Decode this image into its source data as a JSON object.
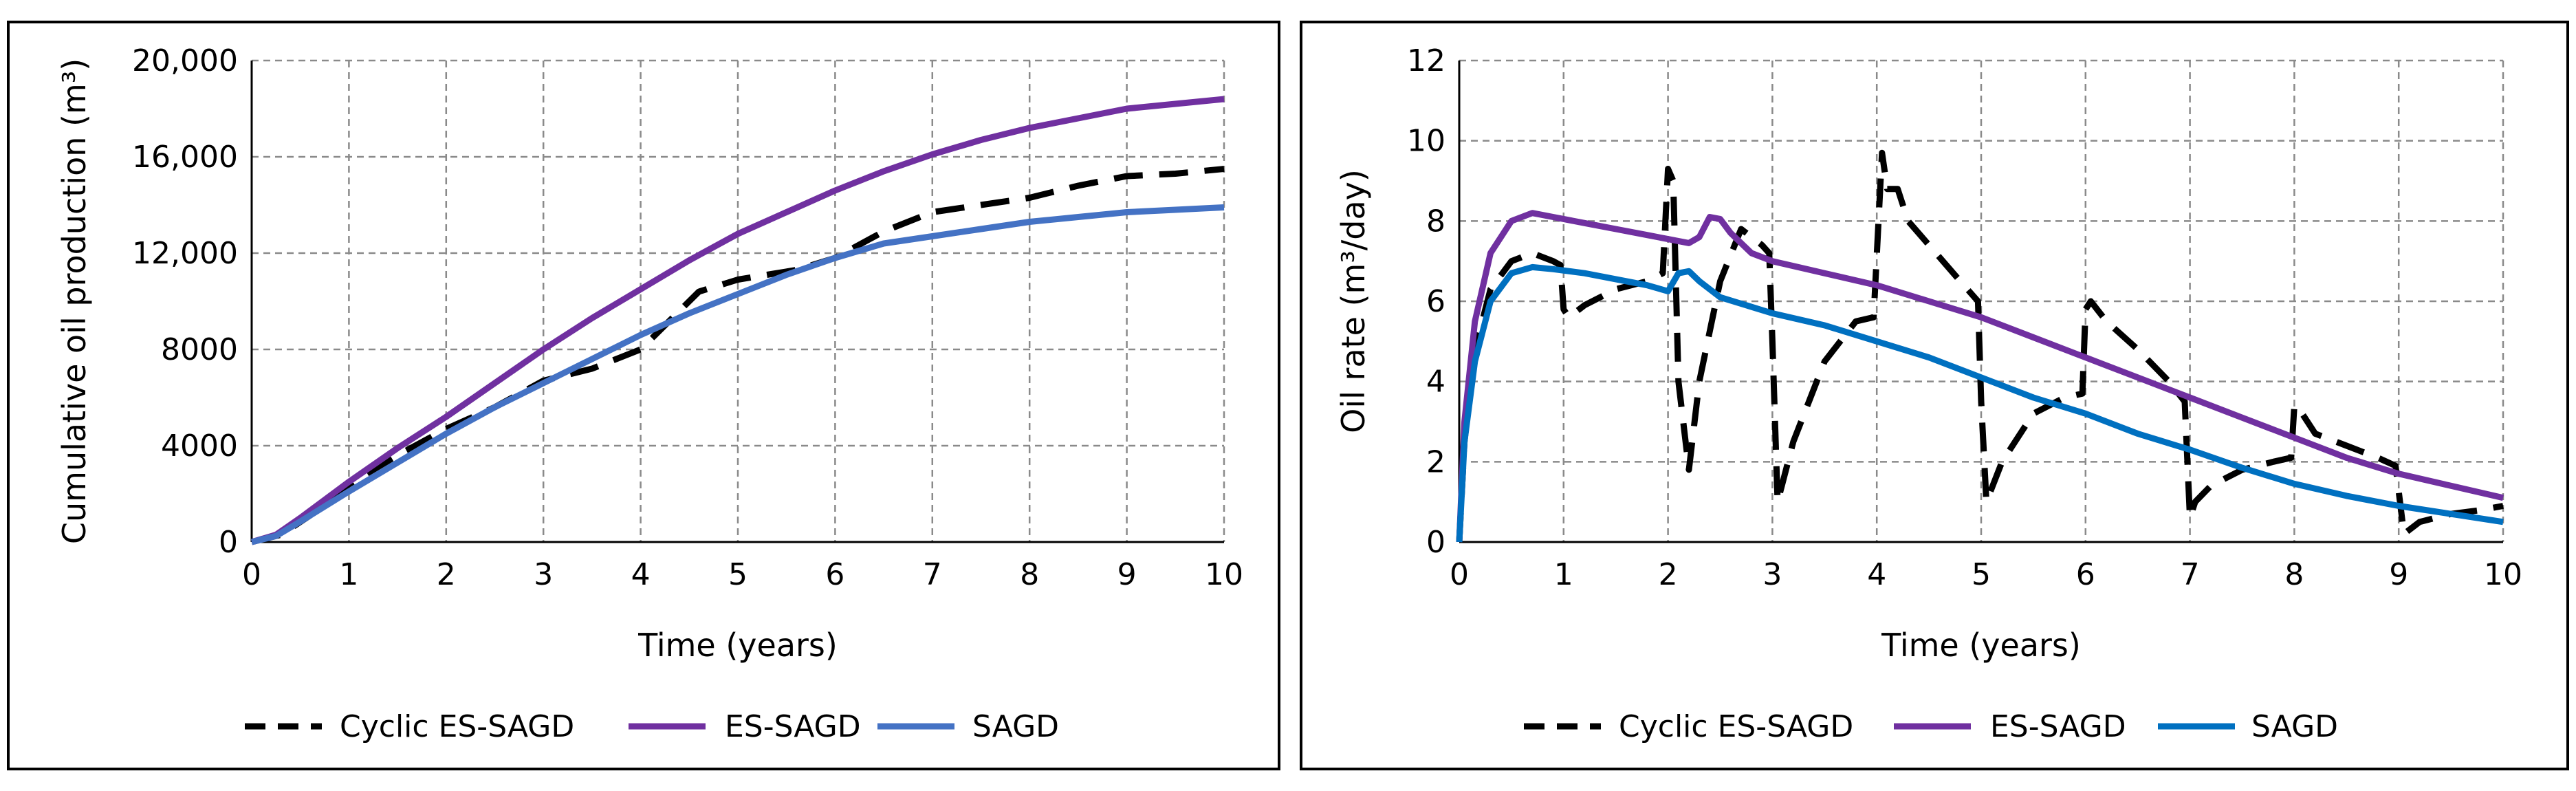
{
  "chart_data": [
    {
      "type": "line",
      "title": "",
      "xlabel": "Time (years)",
      "ylabel": "Cumulative oil production (m³)",
      "xlim": [
        0,
        10
      ],
      "ylim": [
        0,
        20000
      ],
      "x_ticks": [
        "0",
        "1",
        "2",
        "3",
        "4",
        "5",
        "6",
        "7",
        "8",
        "9",
        "10"
      ],
      "y_ticks": [
        "0",
        "4000",
        "8000",
        "12,000",
        "16,000",
        "20,000"
      ],
      "grid": true,
      "legend": "bottom",
      "series": [
        {
          "name": "Cyclic ES-SAGD",
          "color": "#000000",
          "style": "dashed",
          "x": [
            0,
            0.3,
            0.6,
            1,
            1.5,
            2,
            2.5,
            3,
            3.5,
            4,
            4.3,
            4.6,
            5,
            5.3,
            5.6,
            6,
            6.5,
            7,
            7.5,
            8,
            8.5,
            9,
            9.5,
            10
          ],
          "y": [
            0,
            300,
            1100,
            2400,
            3600,
            4700,
            5600,
            6700,
            7200,
            8000,
            9200,
            10400,
            10900,
            11100,
            11300,
            11800,
            12900,
            13700,
            14000,
            14300,
            14800,
            15200,
            15300,
            15500
          ]
        },
        {
          "name": "ES-SAGD",
          "color": "#7030A0",
          "style": "solid",
          "x": [
            0,
            0.25,
            0.5,
            1,
            1.5,
            2,
            2.5,
            3,
            3.5,
            4,
            4.5,
            5,
            5.5,
            6,
            6.5,
            7,
            7.5,
            8,
            8.5,
            9,
            9.5,
            10
          ],
          "y": [
            0,
            300,
            1000,
            2500,
            3900,
            5200,
            6600,
            8000,
            9300,
            10500,
            11700,
            12800,
            13700,
            14600,
            15400,
            16100,
            16700,
            17200,
            17600,
            18000,
            18200,
            18400
          ]
        },
        {
          "name": "SAGD",
          "color": "#4472C4",
          "style": "solid",
          "x": [
            0,
            0.25,
            0.5,
            1,
            1.5,
            2,
            2.5,
            3,
            3.5,
            4,
            4.5,
            5,
            5.5,
            6,
            6.5,
            7,
            7.5,
            8,
            8.5,
            9,
            9.5,
            10
          ],
          "y": [
            0,
            250,
            850,
            2100,
            3300,
            4500,
            5600,
            6600,
            7600,
            8600,
            9500,
            10300,
            11100,
            11800,
            12400,
            12700,
            13000,
            13300,
            13500,
            13700,
            13800,
            13900
          ]
        }
      ]
    },
    {
      "type": "line",
      "title": "",
      "xlabel": "Time (years)",
      "ylabel": "Oil rate (m³/day)",
      "xlim": [
        0,
        10
      ],
      "ylim": [
        0,
        12
      ],
      "x_ticks": [
        "0",
        "1",
        "2",
        "3",
        "4",
        "5",
        "6",
        "7",
        "8",
        "9",
        "10"
      ],
      "y_ticks": [
        "0",
        "2",
        "4",
        "6",
        "8",
        "10",
        "12"
      ],
      "grid": true,
      "legend": "bottom",
      "series": [
        {
          "name": "Cyclic ES-SAGD",
          "color": "#000000",
          "style": "dashed",
          "x": [
            0,
            0.05,
            0.15,
            0.3,
            0.5,
            0.7,
            0.9,
            0.97,
            1.0,
            1.05,
            1.2,
            1.5,
            1.8,
            1.95,
            2.0,
            2.05,
            2.1,
            2.2,
            2.3,
            2.5,
            2.7,
            2.9,
            2.97,
            3.0,
            3.05,
            3.2,
            3.5,
            3.8,
            3.97,
            4.05,
            4.1,
            4.2,
            4.3,
            4.5,
            4.8,
            4.97,
            5.0,
            5.05,
            5.2,
            5.5,
            5.8,
            5.97,
            6.0,
            6.05,
            6.2,
            6.5,
            6.8,
            6.95,
            7.0,
            7.05,
            7.2,
            7.5,
            7.8,
            7.97,
            8.0,
            8.05,
            8.2,
            8.5,
            8.8,
            8.97,
            9.05,
            9.2,
            9.5,
            9.8,
            10
          ],
          "y": [
            0,
            2.5,
            4.8,
            6.3,
            7.0,
            7.2,
            7.0,
            6.9,
            5.8,
            5.6,
            5.9,
            6.3,
            6.5,
            6.7,
            9.3,
            9.0,
            4.0,
            1.8,
            4.0,
            6.5,
            7.8,
            7.4,
            7.2,
            5.0,
            1.0,
            2.5,
            4.5,
            5.5,
            5.6,
            9.7,
            8.8,
            8.8,
            8.0,
            7.4,
            6.5,
            6.0,
            3.5,
            1.0,
            2.0,
            3.2,
            3.6,
            3.7,
            5.8,
            6.0,
            5.5,
            4.8,
            4.0,
            3.5,
            0.6,
            1.0,
            1.4,
            1.8,
            2.0,
            2.1,
            3.4,
            3.3,
            2.7,
            2.4,
            2.1,
            1.9,
            0.2,
            0.5,
            0.7,
            0.8,
            0.9
          ]
        },
        {
          "name": "ES-SAGD",
          "color": "#7030A0",
          "style": "solid",
          "x": [
            0,
            0.05,
            0.15,
            0.3,
            0.5,
            0.7,
            0.9,
            1.2,
            1.5,
            1.8,
            2.0,
            2.2,
            2.3,
            2.4,
            2.5,
            2.6,
            2.8,
            3.0,
            3.5,
            4.0,
            4.5,
            5.0,
            5.5,
            6.0,
            6.5,
            7.0,
            7.5,
            8.0,
            8.5,
            9.0,
            9.5,
            10
          ],
          "y": [
            0,
            3.0,
            5.5,
            7.2,
            8.0,
            8.2,
            8.1,
            7.95,
            7.8,
            7.65,
            7.55,
            7.45,
            7.6,
            8.1,
            8.05,
            7.7,
            7.2,
            7.0,
            6.7,
            6.4,
            6.0,
            5.6,
            5.1,
            4.6,
            4.1,
            3.6,
            3.1,
            2.6,
            2.1,
            1.7,
            1.4,
            1.1
          ]
        },
        {
          "name": "SAGD",
          "color": "#0070C0",
          "style": "solid",
          "x": [
            0,
            0.05,
            0.15,
            0.3,
            0.5,
            0.7,
            0.9,
            1.2,
            1.5,
            1.8,
            2.0,
            2.1,
            2.2,
            2.3,
            2.5,
            3.0,
            3.5,
            4.0,
            4.5,
            5.0,
            5.5,
            6.0,
            6.5,
            7.0,
            7.5,
            8.0,
            8.5,
            9.0,
            9.5,
            10
          ],
          "y": [
            0,
            2.5,
            4.5,
            6.0,
            6.7,
            6.85,
            6.8,
            6.7,
            6.55,
            6.4,
            6.25,
            6.7,
            6.75,
            6.5,
            6.1,
            5.7,
            5.4,
            5.0,
            4.6,
            4.1,
            3.6,
            3.2,
            2.7,
            2.3,
            1.85,
            1.45,
            1.15,
            0.9,
            0.7,
            0.5
          ]
        }
      ]
    }
  ]
}
